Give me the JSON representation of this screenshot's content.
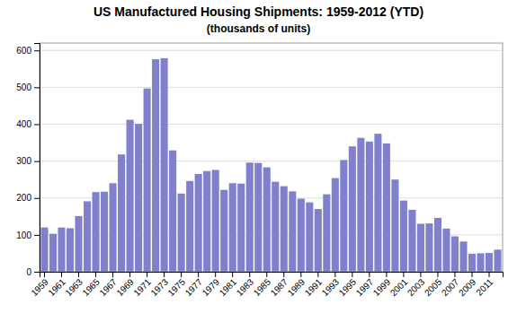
{
  "chart_data": {
    "type": "bar",
    "title": "US Manufactured Housing Shipments: 1959-2012 (YTD)",
    "subtitle": "(thousands of units)",
    "categories": [
      "1959",
      null,
      "1961",
      null,
      "1963",
      null,
      "1965",
      null,
      "1967",
      null,
      "1969",
      null,
      "1971",
      null,
      "1973",
      null,
      "1975",
      null,
      "1977",
      null,
      "1979",
      null,
      "1981",
      null,
      "1983",
      null,
      "1985",
      null,
      "1987",
      null,
      "1989",
      null,
      "1991",
      null,
      "1993",
      null,
      "1995",
      null,
      "1997",
      null,
      "1999",
      null,
      "2001",
      null,
      "2003",
      null,
      "2005",
      null,
      "2007",
      null,
      "2009",
      null,
      "2011",
      null
    ],
    "values": [
      120,
      103,
      120,
      118,
      151,
      191,
      216,
      217,
      240,
      318,
      412,
      401,
      497,
      576,
      579,
      329,
      212,
      246,
      265,
      273,
      276,
      222,
      240,
      239,
      296,
      295,
      283,
      244,
      232,
      218,
      198,
      188,
      170,
      210,
      254,
      303,
      340,
      363,
      353,
      374,
      348,
      250,
      193,
      168,
      130,
      131,
      146,
      117,
      96,
      82,
      49,
      50,
      51,
      60
    ],
    "color": "#8080cc",
    "ylim": [
      0,
      620
    ],
    "yticks": [
      0,
      100,
      200,
      300,
      400,
      500,
      600
    ],
    "grid": true
  }
}
